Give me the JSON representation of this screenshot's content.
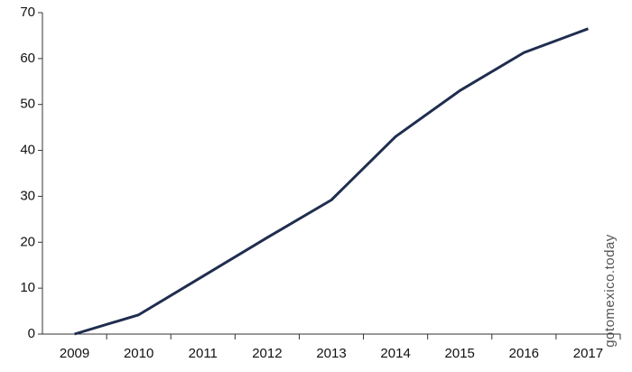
{
  "chart_data": {
    "type": "line",
    "categories": [
      "2009",
      "2010",
      "2011",
      "2012",
      "2013",
      "2014",
      "2015",
      "2016",
      "2017"
    ],
    "series": [
      {
        "name": null,
        "color": "#1f2d4f",
        "values": [
          0,
          4.2,
          12.6,
          21,
          29.2,
          43,
          53,
          61.3,
          66.5
        ]
      }
    ],
    "ylim": [
      0,
      70
    ],
    "yticks": [
      0,
      10,
      20,
      30,
      40,
      50,
      60,
      70
    ],
    "watermark": "gotomexico.today"
  }
}
